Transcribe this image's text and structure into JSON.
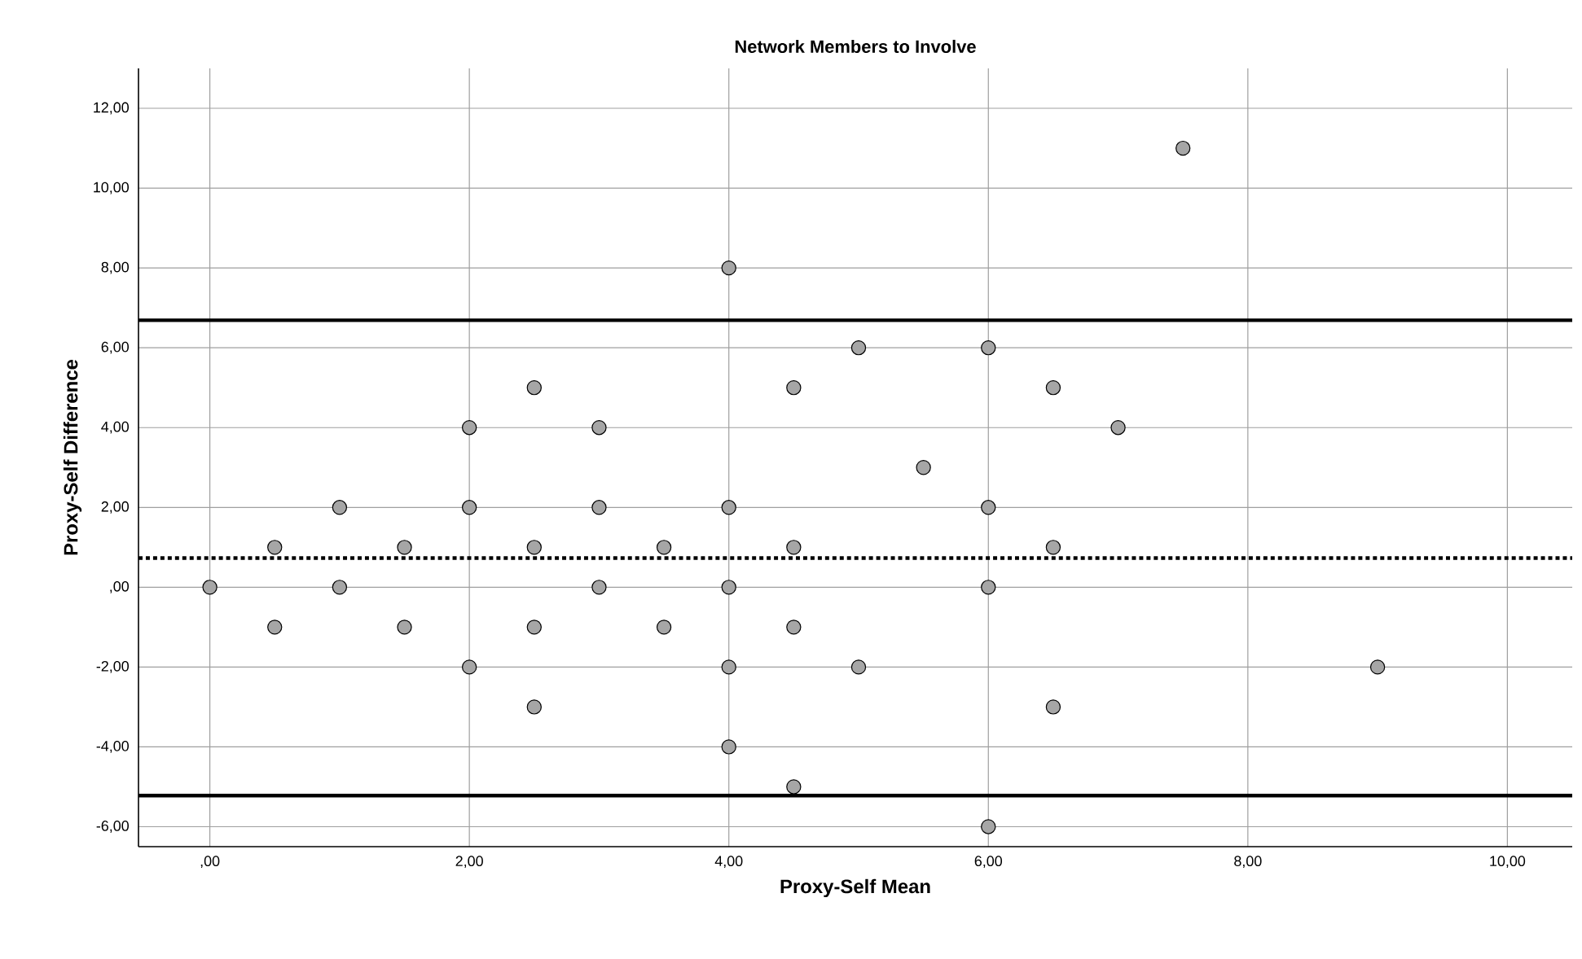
{
  "chart_data": {
    "type": "scatter",
    "title": "Network Members to Involve",
    "xlabel": "Proxy-Self Mean",
    "ylabel": "Proxy-Self Difference",
    "x": [
      0,
      0.5,
      0.5,
      1,
      1,
      1.5,
      1.5,
      2,
      2,
      2,
      2.5,
      2.5,
      2.5,
      2.5,
      3,
      3,
      3,
      3.5,
      3.5,
      4,
      4,
      4,
      4,
      4,
      4.5,
      4.5,
      4.5,
      4.5,
      5,
      5,
      5.5,
      6,
      6,
      6,
      6,
      6.5,
      6.5,
      6.5,
      7,
      7.5,
      9
    ],
    "values": [
      0,
      1,
      -1,
      2,
      0,
      1,
      -1,
      4,
      2,
      -2,
      5,
      1,
      -1,
      -3,
      4,
      2,
      0,
      1,
      -1,
      8,
      2,
      0,
      -2,
      -4,
      5,
      1,
      -1,
      -5,
      6,
      -2,
      3,
      6,
      2,
      0,
      -6,
      5,
      1,
      -3,
      4,
      11,
      -2
    ],
    "color": "#a6a6a6",
    "grid": true,
    "xlim": [
      -0.55,
      10.5
    ],
    "ylim": [
      -6.5,
      13
    ],
    "xticks": [
      {
        "value": 0,
        "label": ",00"
      },
      {
        "value": 2,
        "label": "2,00"
      },
      {
        "value": 4,
        "label": "4,00"
      },
      {
        "value": 6,
        "label": "6,00"
      },
      {
        "value": 8,
        "label": "8,00"
      },
      {
        "value": 10,
        "label": "10,00"
      }
    ],
    "yticks": [
      {
        "value": -6,
        "label": "-6,00"
      },
      {
        "value": -4,
        "label": "-4,00"
      },
      {
        "value": -2,
        "label": "-2,00"
      },
      {
        "value": 0,
        "label": ",00"
      },
      {
        "value": 2,
        "label": "2,00"
      },
      {
        "value": 4,
        "label": "4,00"
      },
      {
        "value": 6,
        "label": "6,00"
      },
      {
        "value": 8,
        "label": "8,00"
      },
      {
        "value": 10,
        "label": "10,00"
      },
      {
        "value": 12,
        "label": "12,00"
      }
    ],
    "ref_lines": [
      {
        "axis": "y",
        "value": 6.69,
        "line_style": "solid",
        "color": "#000000"
      },
      {
        "axis": "y",
        "value": 0.73,
        "line_style": "dotted",
        "color": "#000000"
      },
      {
        "axis": "y",
        "value": -5.22,
        "line_style": "solid",
        "color": "#000000"
      }
    ]
  }
}
